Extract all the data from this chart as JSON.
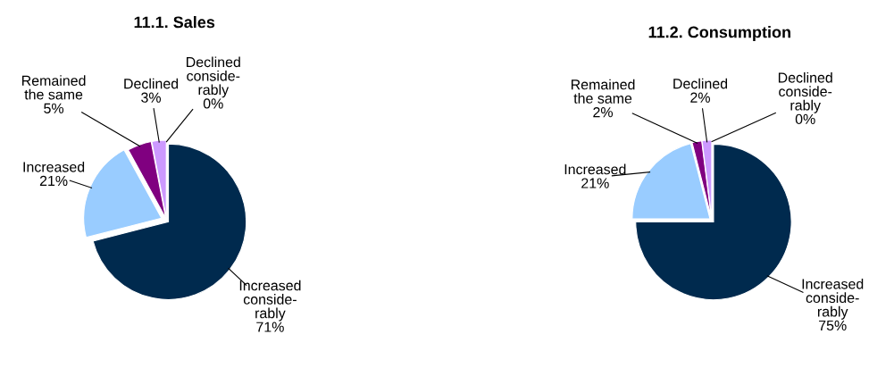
{
  "chart_data": [
    {
      "type": "pie",
      "title": "11.1. Sales",
      "categories": [
        "Increased\nconside-\nrably",
        "Increased",
        "Remained\nthe same",
        "Declined",
        "Declined\nconside-\nrably"
      ],
      "values": [
        71,
        21,
        5,
        3,
        0
      ],
      "value_labels": [
        "71%",
        "21%",
        "5%",
        "3%",
        "0%"
      ],
      "colors": [
        "#002a4e",
        "#99ccff",
        "#800080",
        "#cc99ff",
        "#e6e6ff"
      ]
    },
    {
      "type": "pie",
      "title": "11.2. Consumption",
      "categories": [
        "Increased\nconside-\nrably",
        "Increased",
        "Remained\nthe same",
        "Declined",
        "Declined\nconside-\nrably"
      ],
      "values": [
        75,
        21,
        2,
        2,
        0
      ],
      "value_labels": [
        "75%",
        "21%",
        "2%",
        "2%",
        "0%"
      ],
      "colors": [
        "#002a4e",
        "#99ccff",
        "#800080",
        "#cc99ff",
        "#e6e6ff"
      ]
    }
  ]
}
